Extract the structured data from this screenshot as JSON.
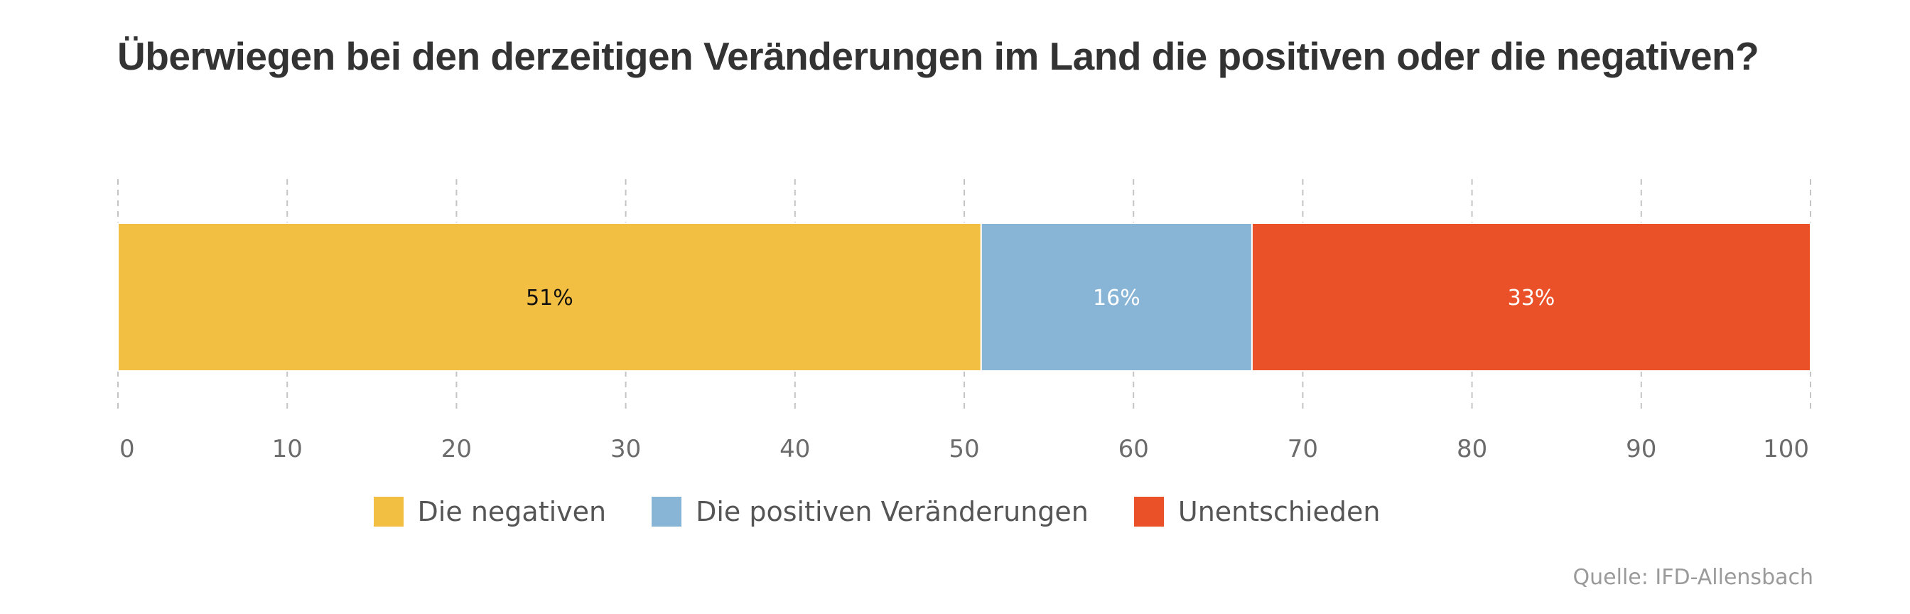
{
  "chart_data": {
    "type": "bar",
    "orientation": "horizontal-stacked",
    "title": "Überwiegen bei den derzeitigen Veränderungen im Land die positiven oder die negativen?",
    "xlim": [
      0,
      100
    ],
    "ticks": [
      0,
      10,
      20,
      30,
      40,
      50,
      60,
      70,
      80,
      90,
      100
    ],
    "grid": true,
    "legend_position": "bottom-center",
    "series": [
      {
        "name": "Die negativen",
        "value": 51,
        "label": "51%",
        "color": "#f3bf42",
        "label_color": "#111111"
      },
      {
        "name": "Die positiven Veränderungen",
        "value": 16,
        "label": "16%",
        "color": "#88b4d6",
        "label_color": "#ffffff"
      },
      {
        "name": "Unentschieden",
        "value": 33,
        "label": "33%",
        "color": "#ea5129",
        "label_color": "#ffffff"
      }
    ],
    "source": "Quelle: IFD-Allensbach"
  }
}
